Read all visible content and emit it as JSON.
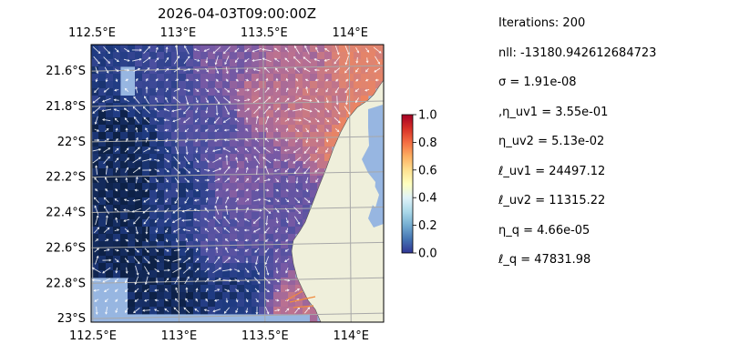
{
  "chart_data": {
    "type": "heatmap",
    "title": "2026-04-03T09:00:00Z",
    "x_ticks_top": [
      "112.5°E",
      "113°E",
      "113.5°E",
      "114°E"
    ],
    "x_ticks_bottom": [
      "112.5°E",
      "113°E",
      "113.5°E",
      "114°E"
    ],
    "x_tick_values": [
      112.5,
      113.0,
      113.5,
      114.0
    ],
    "y_ticks": [
      "21.6°S",
      "21.8°S",
      "22°S",
      "22.2°S",
      "22.4°S",
      "22.6°S",
      "22.8°S",
      "23°S"
    ],
    "y_tick_values": [
      -21.6,
      -21.8,
      -22.0,
      -22.2,
      -22.4,
      -22.6,
      -22.8,
      -23.0
    ],
    "xlim": [
      112.5,
      114.2
    ],
    "ylim": [
      -23.02,
      -21.45
    ],
    "grid": true,
    "colormap": "RdYlBu_r",
    "colorbar": {
      "range": [
        0,
        1
      ],
      "ticks": [
        "0.0",
        "0.2",
        "0.4",
        "0.6",
        "0.8",
        "1.0"
      ],
      "tick_values": [
        0,
        0.2,
        0.4,
        0.6,
        0.8,
        1.0
      ]
    },
    "heatmap_fields": [
      {
        "lon": 112.6,
        "lat": -21.6,
        "value": 0.12
      },
      {
        "lon": 112.9,
        "lat": -21.55,
        "value": 0.2
      },
      {
        "lon": 113.3,
        "lat": -21.55,
        "value": 0.4
      },
      {
        "lon": 113.7,
        "lat": -21.55,
        "value": 0.55
      },
      {
        "lon": 114.1,
        "lat": -21.55,
        "value": 0.72
      },
      {
        "lon": 113.5,
        "lat": -21.75,
        "value": 0.55
      },
      {
        "lon": 113.8,
        "lat": -21.8,
        "value": 0.6
      },
      {
        "lon": 114.1,
        "lat": -21.95,
        "value": 0.85
      },
      {
        "lon": 113.2,
        "lat": -21.9,
        "value": 0.28
      },
      {
        "lon": 112.65,
        "lat": -22.0,
        "value": 0.03
      },
      {
        "lon": 112.7,
        "lat": -22.3,
        "value": 0.01
      },
      {
        "lon": 113.0,
        "lat": -22.3,
        "value": 0.12
      },
      {
        "lon": 113.4,
        "lat": -22.2,
        "value": 0.4
      },
      {
        "lon": 113.6,
        "lat": -22.4,
        "value": 0.33
      },
      {
        "lon": 113.3,
        "lat": -22.55,
        "value": 0.3
      },
      {
        "lon": 112.7,
        "lat": -22.7,
        "value": 0.02
      },
      {
        "lon": 113.0,
        "lat": -22.8,
        "value": 0.03
      },
      {
        "lon": 113.35,
        "lat": -22.85,
        "value": 0.1
      },
      {
        "lon": 113.7,
        "lat": -22.95,
        "value": 0.55
      }
    ],
    "land_color": "#efefdb",
    "ocean_color": "#97b6e1",
    "quiver_color": "#ffffff"
  },
  "stats": {
    "iterations": "Iterations: 200",
    "nll": "nll: -13180.942612684723",
    "sigma": "σ = 1.91e-08",
    "eta_uv1": ",η_uv1 = 3.55e-01",
    "eta_uv2": "η_uv2 = 5.13e-02",
    "ell_uv1": "ℓ_uv1 = 24497.12",
    "ell_uv2": "ℓ_uv2 = 11315.22",
    "eta_q": "η_q = 4.66e-05",
    "ell_q": "ℓ_q = 47831.98"
  }
}
